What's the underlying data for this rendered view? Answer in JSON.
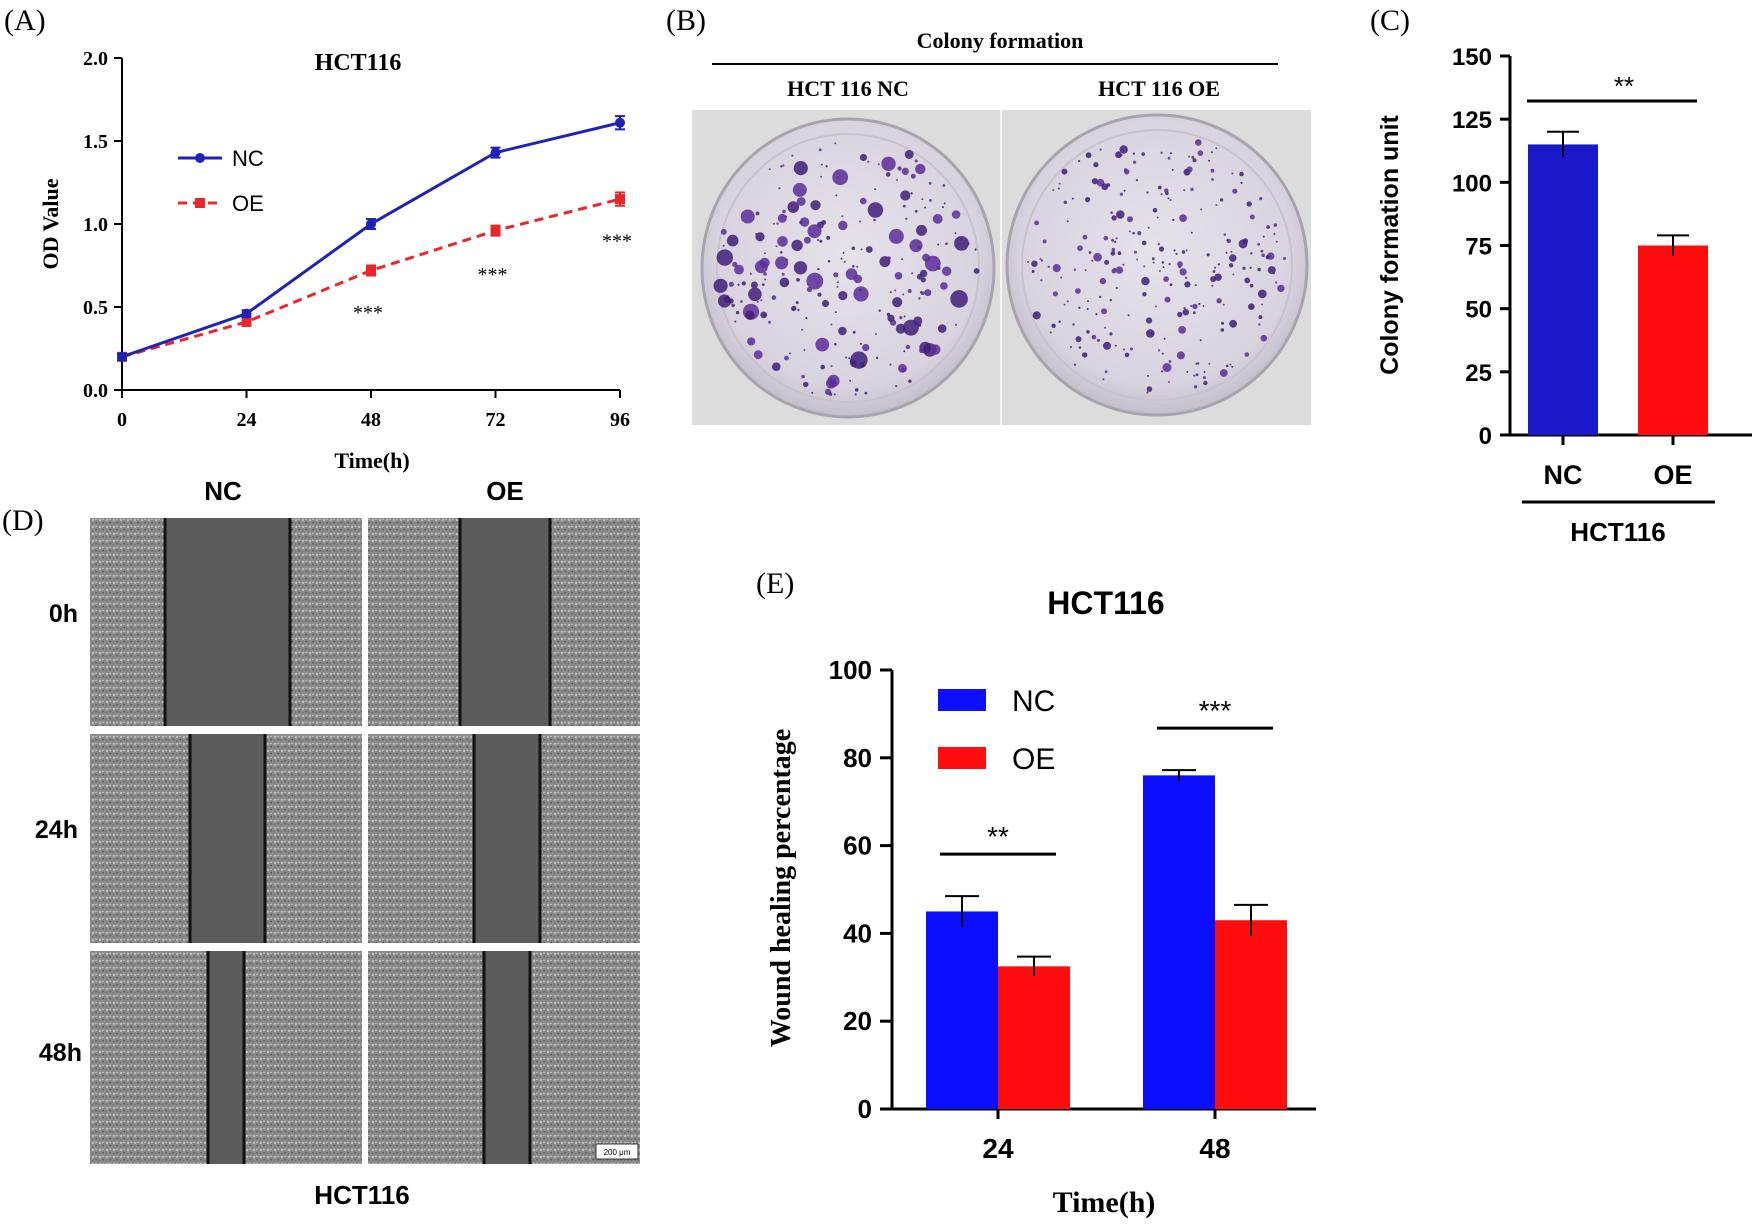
{
  "panels": {
    "a_label": "(A)",
    "b_label": "(B)",
    "c_label": "(C)",
    "d_label": "(D)",
    "e_label": "(E)"
  },
  "colony": {
    "header": "Colony formation",
    "nc_label": "HCT 116  NC",
    "oe_label": "HCT 116  OE"
  },
  "wound_images": {
    "col_nc": "NC",
    "col_oe": "OE",
    "rows": [
      "0h",
      "24h",
      "48h"
    ],
    "footer": "HCT116",
    "scale_bar": "200 μm"
  },
  "chart_data": [
    {
      "id": "A",
      "type": "line",
      "title": "HCT116",
      "xlabel": "Time(h)",
      "ylabel": "OD Value",
      "x": [
        0,
        24,
        48,
        72,
        96
      ],
      "xlim": [
        0,
        96
      ],
      "ylim": [
        0,
        2.0
      ],
      "yticks": [
        "0.0",
        "0.5",
        "1.0",
        "1.5",
        "2.0"
      ],
      "grid": false,
      "legend": "upper-left",
      "series": [
        {
          "name": "NC",
          "color": "#1f22b8",
          "style": "solid",
          "marker": "circle",
          "values": [
            0.2,
            0.46,
            1.0,
            1.43,
            1.61
          ],
          "errors": [
            0.02,
            0.02,
            0.03,
            0.03,
            0.04
          ]
        },
        {
          "name": "OE",
          "color": "#e8262b",
          "style": "dashed",
          "marker": "square",
          "values": [
            0.2,
            0.41,
            0.72,
            0.96,
            1.15
          ],
          "errors": [
            0.02,
            0.02,
            0.03,
            0.03,
            0.04
          ]
        }
      ],
      "annotations": [
        {
          "x": 48,
          "y": 0.5,
          "text": "***"
        },
        {
          "x": 72,
          "y": 0.73,
          "text": "***"
        },
        {
          "x": 96,
          "y": 0.93,
          "text": "***"
        }
      ]
    },
    {
      "id": "C",
      "type": "bar",
      "categories": [
        "NC",
        "OE"
      ],
      "group_label": "HCT116",
      "ylabel": "Colony formation unit",
      "ylim": [
        0,
        150
      ],
      "yticks": [
        "0",
        "25",
        "50",
        "75",
        "100",
        "125",
        "150"
      ],
      "values": [
        115,
        75
      ],
      "errors": [
        5,
        4
      ],
      "colors": [
        "#1a1acc",
        "#ff0d0d"
      ],
      "significance": "**"
    },
    {
      "id": "E",
      "type": "bar",
      "title": "HCT116",
      "xlabel": "Time(h)",
      "ylabel": "Wound healing percentage",
      "categories": [
        "24",
        "48"
      ],
      "ylim": [
        0,
        100
      ],
      "yticks": [
        "0",
        "20",
        "40",
        "60",
        "80",
        "100"
      ],
      "legend": "upper-left",
      "series": [
        {
          "name": "NC",
          "color": "#0d0dff",
          "values": [
            45,
            76
          ],
          "errors": [
            3.5,
            1.2
          ]
        },
        {
          "name": "OE",
          "color": "#ff0d0d",
          "values": [
            32.5,
            43
          ],
          "errors": [
            2.2,
            3.5
          ]
        }
      ],
      "significance": [
        "**",
        "***"
      ]
    }
  ]
}
